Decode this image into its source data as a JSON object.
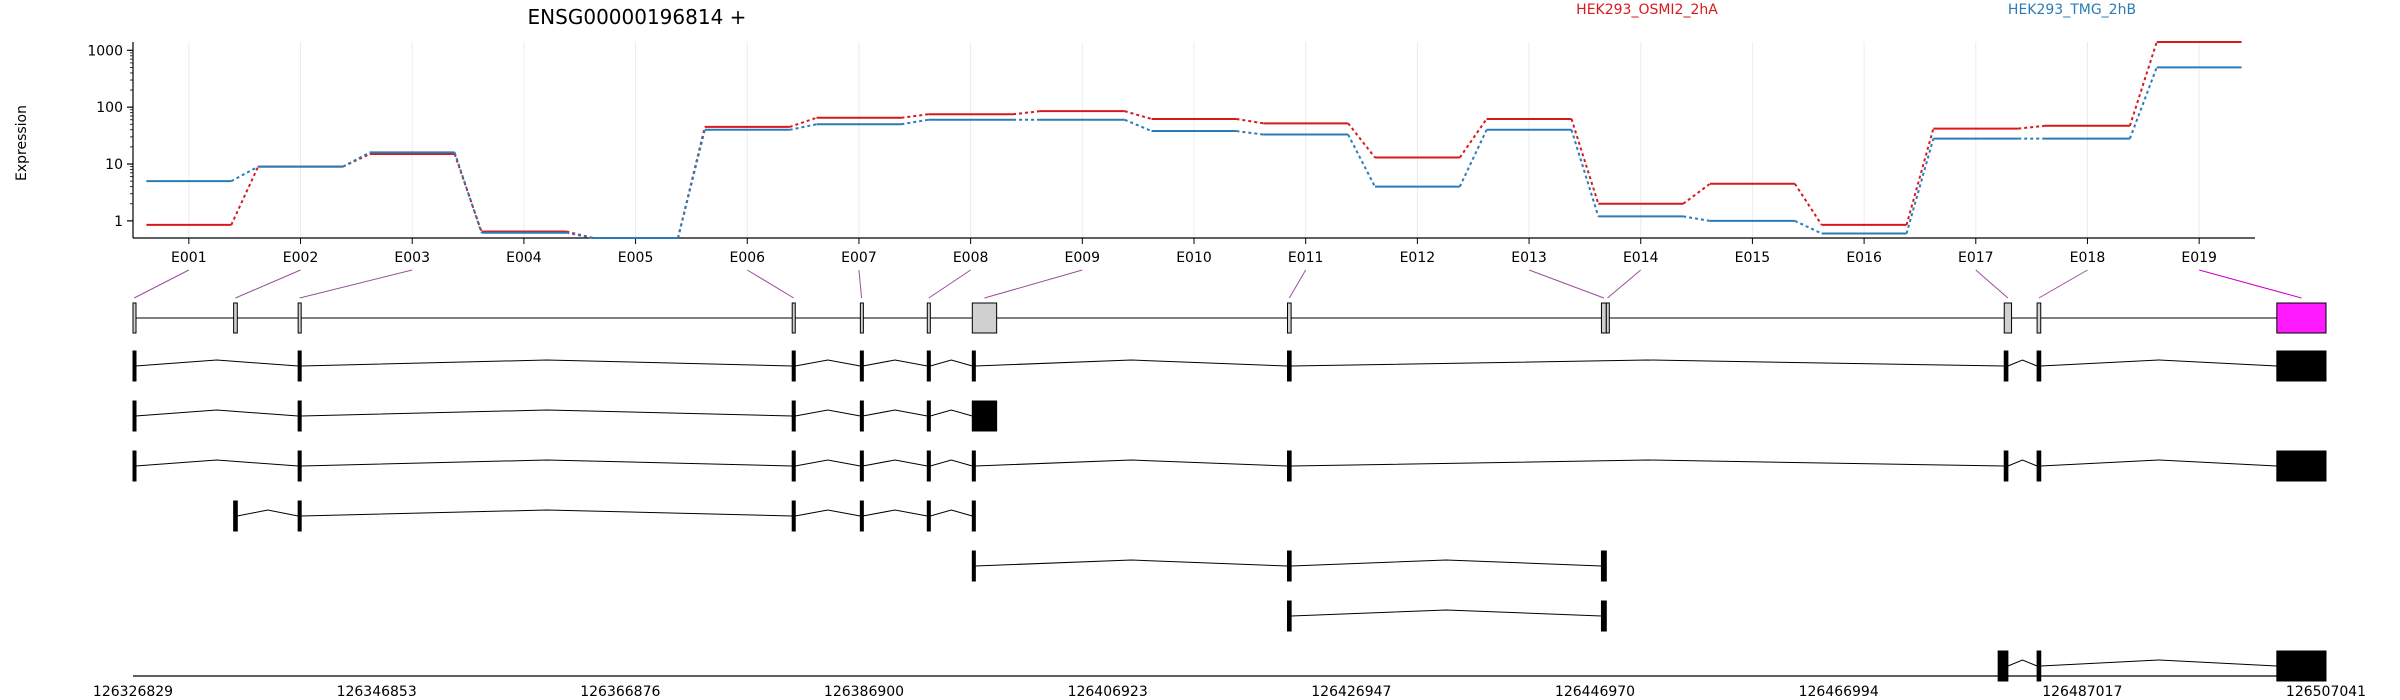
{
  "chart_data": {
    "type": "line",
    "title": "ENSG00000196814 +",
    "ylabel": "Expression",
    "yscale": "log",
    "ylim": [
      0.5,
      1400
    ],
    "yticks": [
      1,
      10,
      100,
      1000
    ],
    "ytick_labels": [
      "1",
      "10",
      "100",
      "1000"
    ],
    "exons": [
      "E001",
      "E002",
      "E003",
      "E004",
      "E005",
      "E006",
      "E007",
      "E008",
      "E009",
      "E010",
      "E011",
      "E012",
      "E013",
      "E014",
      "E015",
      "E016",
      "E017",
      "E018",
      "E019"
    ],
    "series": [
      {
        "name": "HEK293_OSMI2_2hA",
        "color": "#d7191c",
        "values": [
          0.85,
          9,
          15,
          0.65,
          0.5,
          45,
          65,
          75,
          85,
          62,
          52,
          13,
          62,
          2,
          4.5,
          0.85,
          42,
          47,
          1400
        ]
      },
      {
        "name": "HEK293_TMG_2hB",
        "color": "#2c7bb6",
        "values": [
          5,
          9,
          16,
          0.62,
          0.5,
          40,
          50,
          60,
          60,
          38,
          33,
          4,
          40,
          1.2,
          1,
          0.6,
          28,
          28,
          500
        ]
      }
    ],
    "genome_axis": {
      "start": 126326829,
      "end": 126507041,
      "tick_labels": [
        "126326829",
        "126346853",
        "126366876",
        "126386900",
        "126406923",
        "126426947",
        "126446970",
        "126466994",
        "126487017",
        "126507041"
      ]
    },
    "exon_coords": [
      [
        126326829,
        126327029
      ],
      [
        126335100,
        126335400
      ],
      [
        126340400,
        126340650
      ],
      [
        126381000,
        126381250
      ],
      [
        126386600,
        126386800
      ],
      [
        126392100,
        126392350
      ],
      [
        126395800,
        126397800
      ],
      [
        126421700,
        126422000
      ],
      [
        126447500,
        126447900
      ],
      [
        126447900,
        126448100
      ],
      [
        126480600,
        126481200
      ],
      [
        126483300,
        126483600
      ],
      [
        126503000,
        126507041
      ]
    ],
    "highlight_exon": "E019",
    "highlight_color": "#ff1aff",
    "transcripts": [
      {
        "exons": [
          [
            126326829,
            126327029
          ],
          [
            126340400,
            126340650
          ],
          [
            126381000,
            126381250
          ],
          [
            126386600,
            126386800
          ],
          [
            126392100,
            126392350
          ],
          [
            126395800,
            126396050
          ],
          [
            126421700,
            126422000
          ],
          [
            126480600,
            126480900
          ],
          [
            126483300,
            126483600
          ],
          [
            126503000,
            126507041
          ]
        ]
      },
      {
        "exons": [
          [
            126326829,
            126327029
          ],
          [
            126340400,
            126340650
          ],
          [
            126381000,
            126381250
          ],
          [
            126386600,
            126386800
          ],
          [
            126392100,
            126392350
          ],
          [
            126395800,
            126397800
          ]
        ]
      },
      {
        "exons": [
          [
            126326829,
            126327029
          ],
          [
            126340400,
            126340650
          ],
          [
            126381000,
            126381250
          ],
          [
            126386600,
            126386800
          ],
          [
            126392100,
            126392350
          ],
          [
            126395800,
            126396050
          ],
          [
            126421700,
            126422000
          ],
          [
            126480600,
            126480900
          ],
          [
            126483300,
            126483600
          ],
          [
            126503000,
            126507041
          ]
        ]
      },
      {
        "exons": [
          [
            126335100,
            126335400
          ],
          [
            126340400,
            126340650
          ],
          [
            126381000,
            126381250
          ],
          [
            126386600,
            126386800
          ],
          [
            126392100,
            126392350
          ],
          [
            126395800,
            126396050
          ]
        ]
      },
      {
        "exons": [
          [
            126395800,
            126396050
          ],
          [
            126421700,
            126422000
          ],
          [
            126447500,
            126447900
          ]
        ]
      },
      {
        "exons": [
          [
            126421700,
            126422000
          ],
          [
            126447500,
            126447900
          ]
        ]
      },
      {
        "exons": [
          [
            126480100,
            126480900
          ],
          [
            126483300,
            126483600
          ],
          [
            126503000,
            126507041
          ]
        ]
      }
    ]
  }
}
